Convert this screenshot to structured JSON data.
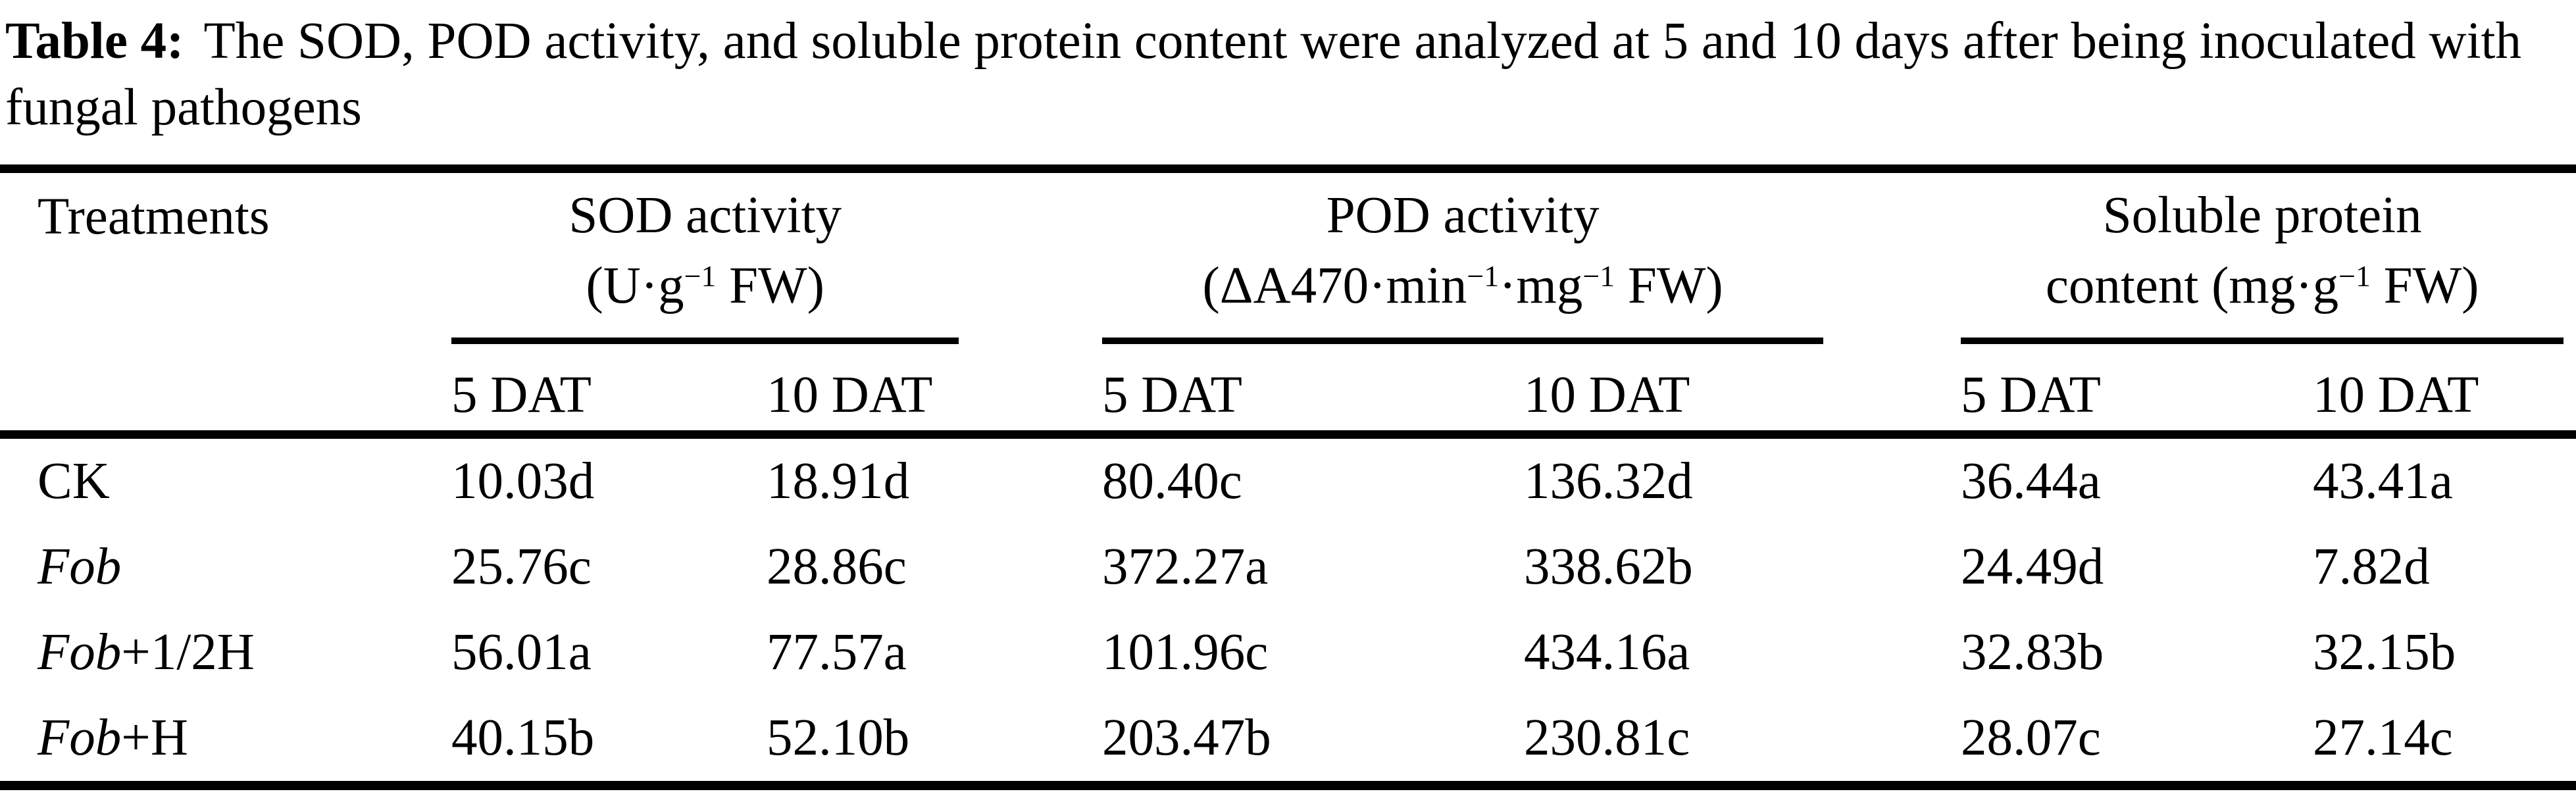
{
  "caption": {
    "label": "Table 4:",
    "text": "The SOD, POD activity, and soluble protein content were analyzed at 5 and 10 days after being inoculated with fungal pathogens"
  },
  "table": {
    "treatments_header": "Treatments",
    "groups": [
      {
        "title": "SOD activity",
        "unit_segments": [
          {
            "text": "(U·g"
          },
          {
            "text": "−1",
            "sup": true
          },
          {
            "text": " FW)"
          }
        ],
        "subcolumns": [
          "5 DAT",
          "10 DAT"
        ]
      },
      {
        "title": "POD activity",
        "unit_segments": [
          {
            "text": "(ΔA470·min"
          },
          {
            "text": "−1",
            "sup": true
          },
          {
            "text": "·mg"
          },
          {
            "text": "−1",
            "sup": true
          },
          {
            "text": " FW)"
          }
        ],
        "subcolumns": [
          "5 DAT",
          "10 DAT"
        ]
      },
      {
        "title": "Soluble protein",
        "unit_segments": [
          {
            "text": "content (mg·g"
          },
          {
            "text": "−1",
            "sup": true
          },
          {
            "text": " FW)"
          }
        ],
        "subcolumns": [
          "5 DAT",
          "10 DAT"
        ]
      }
    ],
    "rows": [
      {
        "label_italic": "",
        "label_roman": "CK",
        "values": [
          "10.03d",
          "18.91d",
          "80.40c",
          "136.32d",
          "36.44a",
          "43.41a"
        ]
      },
      {
        "label_italic": "Fob",
        "label_roman": "",
        "values": [
          "25.76c",
          "28.86c",
          "372.27a",
          "338.62b",
          "24.49d",
          "7.82d"
        ]
      },
      {
        "label_italic": "Fob",
        "label_roman": "+1/2H",
        "values": [
          "56.01a",
          "77.57a",
          "101.96c",
          "434.16a",
          "32.83b",
          "32.15b"
        ]
      },
      {
        "label_italic": "Fob",
        "label_roman": "+H",
        "values": [
          "40.15b",
          "52.10b",
          "203.47b",
          "230.81c",
          "28.07c",
          "27.14c"
        ]
      }
    ]
  },
  "colors": {
    "text": "#000000",
    "background": "#ffffff",
    "rule": "#000000"
  }
}
